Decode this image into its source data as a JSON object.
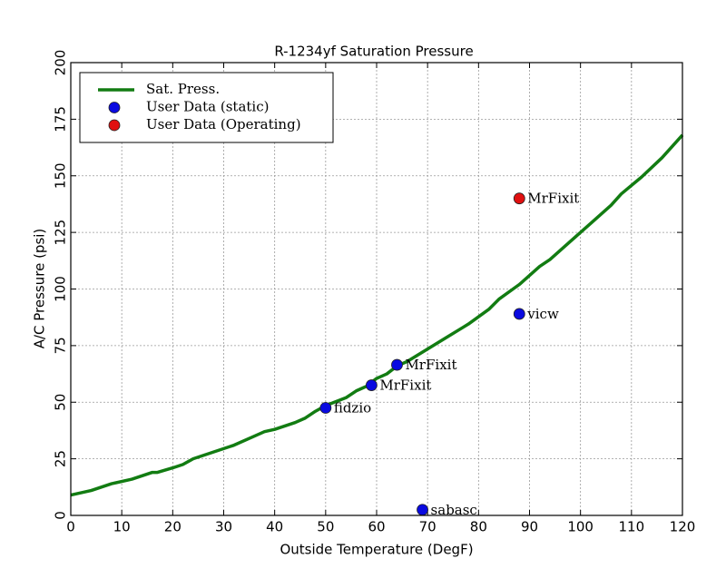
{
  "chart_data": {
    "type": "line",
    "title": "R-1234yf Saturation Pressure",
    "x_label": "Outside Temperature (DegF)",
    "y_label": "A/C Pressure (psi)",
    "xlim": [
      0,
      120
    ],
    "xticks": [
      0,
      10,
      20,
      30,
      40,
      50,
      60,
      70,
      80,
      90,
      100,
      110,
      120
    ],
    "ylim": [
      0,
      200
    ],
    "yticks": [
      0,
      25,
      50,
      75,
      100,
      125,
      150,
      175,
      200
    ],
    "grid": true,
    "legend": "upper left",
    "series": [
      {
        "name": "Sat. Press.",
        "type": "line",
        "color": "#127c12",
        "x": [
          0,
          4,
          8,
          12,
          16,
          17,
          20,
          22,
          24,
          28,
          32,
          36,
          38,
          40,
          44,
          46,
          48,
          50,
          54,
          56,
          58,
          60,
          62,
          64,
          66,
          70,
          74,
          78,
          82,
          84,
          88,
          92,
          94,
          98,
          102,
          106,
          108,
          112,
          116,
          120
        ],
        "values": [
          9,
          11,
          14,
          16,
          19,
          19,
          21,
          22.5,
          25,
          28,
          31,
          35,
          37,
          38,
          41,
          43,
          46,
          48.5,
          52,
          55,
          57,
          60.5,
          62.5,
          66,
          68,
          73.5,
          79,
          84.5,
          91,
          95.5,
          102,
          110,
          113,
          121,
          129,
          137,
          142,
          149.5,
          158,
          168
        ]
      },
      {
        "name": "User Data (static)",
        "type": "scatter",
        "color": "#0a0ae0",
        "x": [
          50,
          59,
          64,
          88,
          69
        ],
        "values": [
          47.5,
          57.5,
          66.5,
          89,
          2.5
        ],
        "labels": [
          "fidzio",
          "MrFixit",
          "MrFixit",
          "vicw",
          "sabasc"
        ]
      },
      {
        "name": "User Data (Operating)",
        "type": "scatter",
        "color": "#e01010",
        "x": [
          88
        ],
        "values": [
          140
        ],
        "labels": [
          "MrFixit"
        ]
      }
    ]
  }
}
